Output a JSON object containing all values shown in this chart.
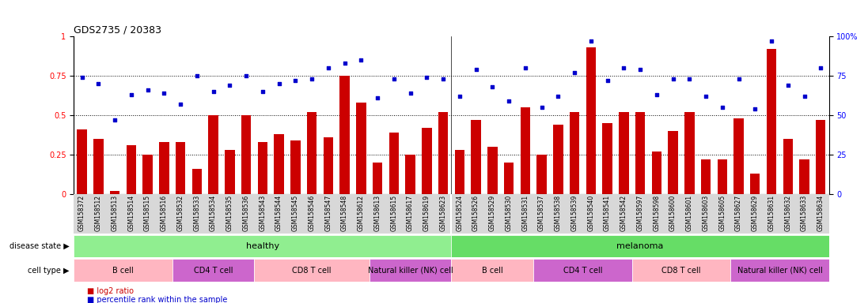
{
  "title": "GDS2735 / 20383",
  "samples": [
    "GSM158372",
    "GSM158512",
    "GSM158513",
    "GSM158514",
    "GSM158515",
    "GSM158516",
    "GSM158532",
    "GSM158533",
    "GSM158534",
    "GSM158535",
    "GSM158536",
    "GSM158543",
    "GSM158544",
    "GSM158545",
    "GSM158546",
    "GSM158547",
    "GSM158548",
    "GSM158612",
    "GSM158613",
    "GSM158615",
    "GSM158617",
    "GSM158619",
    "GSM158623",
    "GSM158524",
    "GSM158526",
    "GSM158529",
    "GSM158530",
    "GSM158531",
    "GSM158537",
    "GSM158538",
    "GSM158539",
    "GSM158540",
    "GSM158541",
    "GSM158542",
    "GSM158597",
    "GSM158598",
    "GSM158600",
    "GSM158601",
    "GSM158603",
    "GSM158605",
    "GSM158627",
    "GSM158629",
    "GSM158631",
    "GSM158632",
    "GSM158633",
    "GSM158634"
  ],
  "log2_ratio": [
    0.41,
    0.35,
    0.02,
    0.31,
    0.25,
    0.33,
    0.33,
    0.16,
    0.5,
    0.28,
    0.5,
    0.33,
    0.38,
    0.34,
    0.52,
    0.36,
    0.75,
    0.58,
    0.2,
    0.39,
    0.25,
    0.42,
    0.52,
    0.28,
    0.47,
    0.3,
    0.2,
    0.55,
    0.25,
    0.44,
    0.52,
    0.93,
    0.45,
    0.52,
    0.52,
    0.27,
    0.4,
    0.52,
    0.22,
    0.22,
    0.48,
    0.13,
    0.92,
    0.35,
    0.22,
    0.47
  ],
  "percentile_rank": [
    0.74,
    0.7,
    0.47,
    0.63,
    0.66,
    0.64,
    0.57,
    0.75,
    0.65,
    0.69,
    0.75,
    0.65,
    0.7,
    0.72,
    0.73,
    0.8,
    0.83,
    0.85,
    0.61,
    0.73,
    0.64,
    0.74,
    0.73,
    0.62,
    0.79,
    0.68,
    0.59,
    0.8,
    0.55,
    0.62,
    0.77,
    0.97,
    0.72,
    0.8,
    0.79,
    0.63,
    0.73,
    0.73,
    0.62,
    0.55,
    0.73,
    0.54,
    0.97,
    0.69,
    0.62,
    0.8
  ],
  "disease_state_groups": [
    {
      "label": "healthy",
      "start": 0,
      "end": 22,
      "color": "#90EE90"
    },
    {
      "label": "melanoma",
      "start": 23,
      "end": 45,
      "color": "#66DD66"
    }
  ],
  "cell_type_groups": [
    {
      "label": "B cell",
      "start": 0,
      "end": 5,
      "color": "#FFB6C1"
    },
    {
      "label": "CD4 T cell",
      "start": 6,
      "end": 10,
      "color": "#CC66CC"
    },
    {
      "label": "CD8 T cell",
      "start": 11,
      "end": 17,
      "color": "#FFB6C1"
    },
    {
      "label": "Natural killer (NK) cell",
      "start": 18,
      "end": 22,
      "color": "#CC66CC"
    },
    {
      "label": "B cell",
      "start": 23,
      "end": 27,
      "color": "#FFB6C1"
    },
    {
      "label": "CD4 T cell",
      "start": 28,
      "end": 33,
      "color": "#CC66CC"
    },
    {
      "label": "CD8 T cell",
      "start": 34,
      "end": 39,
      "color": "#FFB6C1"
    },
    {
      "label": "Natural killer (NK) cell",
      "start": 40,
      "end": 45,
      "color": "#CC66CC"
    }
  ],
  "bar_color": "#CC0000",
  "dot_color": "#0000CC",
  "yticks_left": [
    0,
    0.25,
    0.5,
    0.75,
    1.0
  ],
  "ytick_labels_left": [
    "0",
    "0.25",
    "0.5",
    "0.75",
    "1"
  ],
  "yticks_right": [
    0,
    25,
    50,
    75,
    100
  ],
  "ytick_labels_right": [
    "0",
    "25",
    "50",
    "75",
    "100%"
  ],
  "hgrid_vals": [
    0.25,
    0.5,
    0.75
  ],
  "legend_items": [
    "log2 ratio",
    "percentile rank within the sample"
  ],
  "disease_label": "disease state",
  "cell_label": "cell type",
  "bg_color": "#f0f0f0"
}
